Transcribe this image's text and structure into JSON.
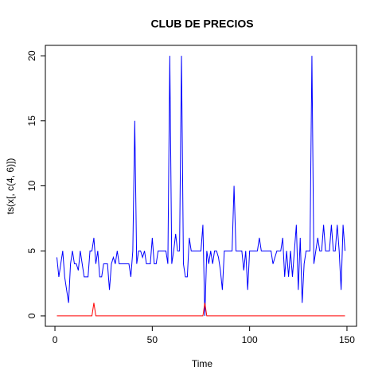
{
  "chart_data": {
    "type": "line",
    "title": "CLUB DE PRECIOS",
    "xlabel": "Time",
    "ylabel": "ts(x[, c(4, 6)])",
    "x": [
      1,
      2,
      3,
      4,
      5,
      6,
      7,
      8,
      9,
      10,
      11,
      12,
      13,
      14,
      15,
      16,
      17,
      18,
      19,
      20,
      21,
      22,
      23,
      24,
      25,
      26,
      27,
      28,
      29,
      30,
      31,
      32,
      33,
      34,
      35,
      36,
      37,
      38,
      39,
      40,
      41,
      42,
      43,
      44,
      45,
      46,
      47,
      48,
      49,
      50,
      51,
      52,
      53,
      54,
      55,
      56,
      57,
      58,
      59,
      60,
      61,
      62,
      63,
      64,
      65,
      66,
      67,
      68,
      69,
      70,
      71,
      72,
      73,
      74,
      75,
      76,
      77,
      78,
      79,
      80,
      81,
      82,
      83,
      84,
      85,
      86,
      87,
      88,
      89,
      90,
      91,
      92,
      93,
      94,
      95,
      96,
      97,
      98,
      99,
      100,
      101,
      102,
      103,
      104,
      105,
      106,
      107,
      108,
      109,
      110,
      111,
      112,
      113,
      114,
      115,
      116,
      117,
      118,
      119,
      120,
      121,
      122,
      123,
      124,
      125,
      126,
      127,
      128,
      129,
      130,
      131,
      132,
      133,
      134,
      135,
      136,
      137,
      138,
      139,
      140,
      141,
      142,
      143,
      144,
      145,
      146,
      147,
      148,
      149
    ],
    "series": [
      {
        "color": "#0000ff",
        "values": [
          4.5,
          3,
          4,
          5,
          3,
          2,
          1,
          4,
          5,
          4,
          4,
          3.5,
          5,
          4,
          3,
          3,
          3,
          5,
          5,
          6,
          4,
          5,
          3,
          3,
          4,
          4,
          4,
          2,
          4,
          4.5,
          4,
          5,
          4,
          4,
          4,
          4,
          4,
          4,
          3,
          5,
          15,
          4,
          5,
          5,
          4.5,
          5,
          4,
          4,
          4,
          6,
          4,
          4,
          5,
          5,
          5,
          5,
          5,
          4,
          20,
          4,
          5,
          6.3,
          5,
          5,
          20,
          4,
          3,
          3,
          6,
          5,
          5,
          5,
          5,
          5,
          5,
          7,
          0,
          5,
          4,
          5,
          4,
          5,
          5,
          4.5,
          3.5,
          2,
          5,
          5,
          5,
          5,
          5,
          10,
          5,
          5,
          5,
          5,
          3.5,
          5,
          2,
          5,
          5,
          5,
          5,
          5,
          6,
          5,
          5,
          5,
          5,
          5,
          5,
          4,
          4.5,
          5,
          5,
          5,
          6,
          3,
          5,
          3,
          5,
          3,
          5,
          7,
          2,
          6,
          1,
          4,
          5,
          5,
          5,
          20,
          4,
          5,
          6,
          5,
          5,
          7,
          5,
          5,
          5,
          7,
          5,
          5,
          7,
          5,
          2,
          7,
          5
        ]
      },
      {
        "color": "#ff0000",
        "values": [
          0,
          0,
          0,
          0,
          0,
          0,
          0,
          0,
          0,
          0,
          0,
          0,
          0,
          0,
          0,
          0,
          0,
          0,
          0,
          1,
          0,
          0,
          0,
          0,
          0,
          0,
          0,
          0,
          0,
          0,
          0,
          0,
          0,
          0,
          0,
          0,
          0,
          0,
          0,
          0,
          0,
          0,
          0,
          0,
          0,
          0,
          0,
          0,
          0,
          0,
          0,
          0,
          0,
          0,
          0,
          0,
          0,
          0,
          0,
          0,
          0,
          0,
          0,
          0,
          0,
          0,
          0,
          0,
          0,
          0,
          0,
          0,
          0,
          0,
          0,
          0,
          1,
          0,
          0,
          0,
          0,
          0,
          0,
          0,
          0,
          0,
          0,
          0,
          0,
          0,
          0,
          0,
          0,
          0,
          0,
          0,
          0,
          0,
          0,
          0,
          0,
          0,
          0,
          0,
          0,
          0,
          0,
          0,
          0,
          0,
          0,
          0,
          0,
          0,
          0,
          0,
          0,
          0,
          0,
          0,
          0,
          0,
          0,
          0,
          0,
          0,
          0,
          0,
          0,
          0,
          0,
          0,
          0,
          0,
          0,
          0,
          0,
          0,
          0,
          0,
          0,
          0,
          0,
          0,
          0,
          0,
          0,
          0,
          0
        ]
      }
    ],
    "xlim": [
      -4.92,
      154.92
    ],
    "xticks": [
      0,
      50,
      100,
      150
    ],
    "ylim": [
      -0.8,
      20.8
    ],
    "yticks": [
      0,
      5,
      10,
      15,
      20
    ]
  }
}
